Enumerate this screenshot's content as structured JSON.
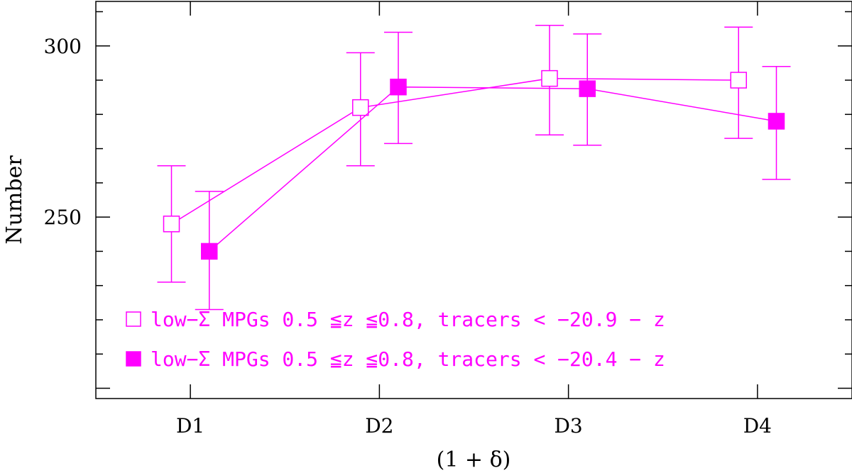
{
  "chart_data": {
    "type": "scatter",
    "xlabel": "(1 + δ)",
    "ylabel": "Number",
    "categories": [
      "D1",
      "D2",
      "D3",
      "D4"
    ],
    "ylim": [
      197,
      313
    ],
    "yticks": [
      250,
      300
    ],
    "grid": false,
    "legend_position": "bottom-left",
    "color": "#ff00ff",
    "series": [
      {
        "name": "low−Σ  MPGs 0.5 ≦z ≦0.8, tracers < −20.9 − z",
        "marker": "open-square",
        "offset": -0.1,
        "values": [
          248,
          282,
          290.5,
          290
        ],
        "err_lo": [
          231,
          265,
          274,
          273
        ],
        "err_hi": [
          265,
          298,
          306,
          305.5
        ]
      },
      {
        "name": "low−Σ  MPGs 0.5 ≦z ≦0.8, tracers < −20.4 − z",
        "marker": "filled-square",
        "offset": 0.1,
        "values": [
          240,
          288,
          287.5,
          278
        ],
        "err_lo": [
          223,
          271.5,
          271,
          261
        ],
        "err_hi": [
          257.5,
          304,
          303.5,
          294
        ]
      }
    ]
  }
}
